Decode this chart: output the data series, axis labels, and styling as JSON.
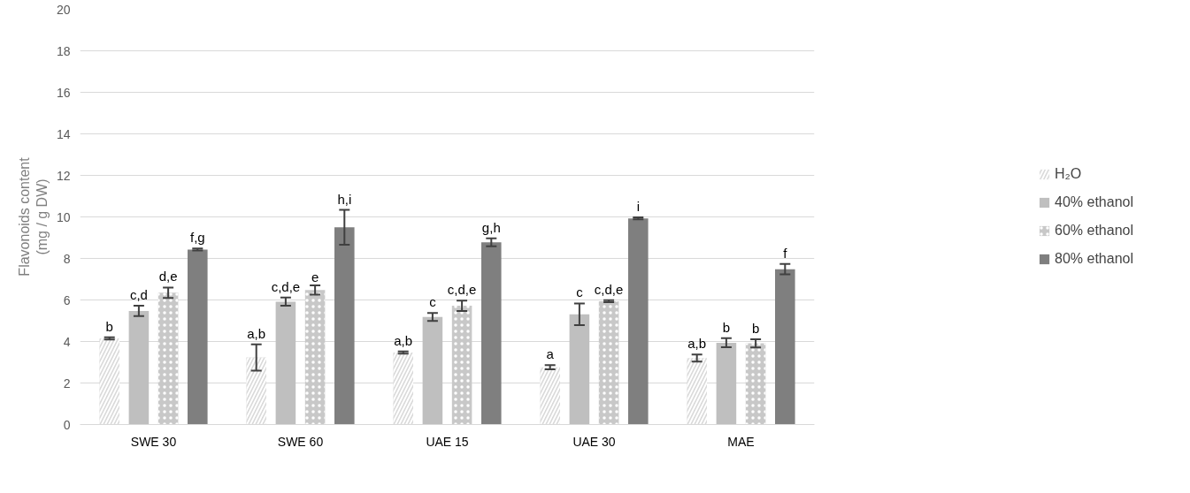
{
  "chart_data": {
    "type": "bar",
    "ylabel": "Flavonoids content\n(mg / g DW)",
    "categories": [
      "SWE 30",
      "SWE 60",
      "UAE 15",
      "UAE 30",
      "MAE"
    ],
    "ylim": [
      0,
      20
    ],
    "yticks": [
      0,
      2,
      4,
      6,
      8,
      10,
      12,
      14,
      16,
      18,
      20
    ],
    "grid": "y",
    "legend": "right",
    "series": [
      {
        "name": "H₂O",
        "color": "#d9d9d9",
        "values": [
          4.15,
          3.23,
          3.47,
          2.76,
          3.2
        ],
        "errors": [
          0.05,
          0.63,
          0.05,
          0.1,
          0.17
        ],
        "value_labels": [
          "b",
          "a,b",
          "a,b",
          "a",
          "a,b"
        ]
      },
      {
        "name": "40% ethanol",
        "color": "#bfbfbf",
        "values": [
          5.47,
          5.92,
          5.18,
          5.31,
          3.94
        ],
        "errors": [
          0.25,
          0.2,
          0.19,
          0.52,
          0.22
        ],
        "value_labels": [
          "c,d",
          "c,d,e",
          "c",
          "c",
          "b"
        ]
      },
      {
        "name": "60% ethanol",
        "color": "#c8c8c8",
        "values": [
          6.35,
          6.48,
          5.72,
          5.94,
          3.91
        ],
        "errors": [
          0.25,
          0.22,
          0.25,
          0.05,
          0.2
        ],
        "value_labels": [
          "d,e",
          "e",
          "c,d,e",
          "c,d,e",
          "b"
        ]
      },
      {
        "name": "80% ethanol",
        "color": "#7f7f7f",
        "values": [
          8.43,
          9.5,
          8.78,
          9.93,
          7.48
        ],
        "errors": [
          0.05,
          0.84,
          0.19,
          0.05,
          0.25
        ],
        "value_labels": [
          "f,g",
          "h,i",
          "g,h",
          "i",
          "f"
        ]
      }
    ]
  }
}
